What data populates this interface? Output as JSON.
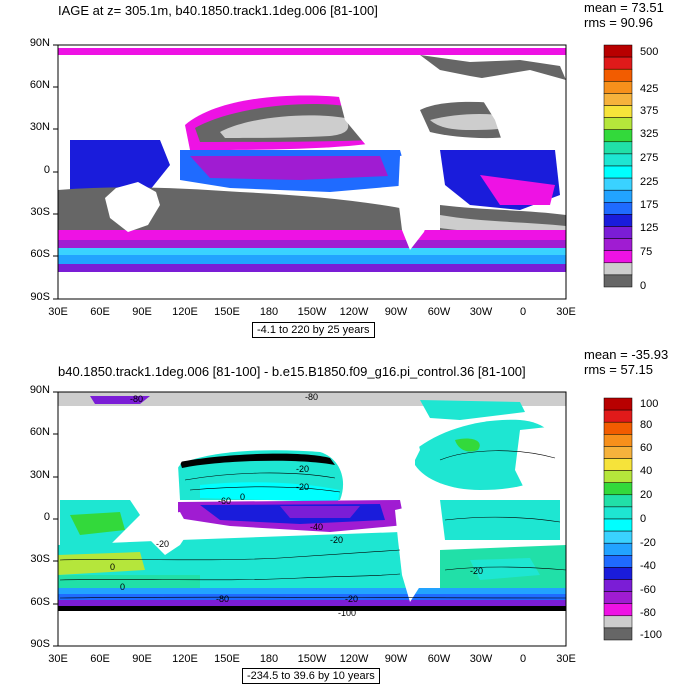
{
  "panels": [
    {
      "title": "IAGE at z= 305.1m, b40.1850.track1.1deg.006 [81-100]",
      "mean": "mean = 73.51",
      "rms": "rms = 90.96",
      "lat_labels": [
        "90N",
        "60N",
        "30N",
        "0",
        "30S",
        "60S",
        "90S"
      ],
      "lon_labels": [
        "30E",
        "60E",
        "90E",
        "120E",
        "150E",
        "180",
        "150W",
        "120W",
        "90W",
        "60W",
        "30W",
        "0",
        "30E"
      ],
      "range": "-4.1 to 220 by 25 years",
      "colorbar": {
        "labels": [
          "500",
          "425",
          "375",
          "325",
          "275",
          "225",
          "175",
          "125",
          "75",
          "0"
        ],
        "colors": [
          "#b80000",
          "#e01a1a",
          "#f25c00",
          "#f7901b",
          "#f6b23c",
          "#f6e33a",
          "#b5e63b",
          "#33d93b",
          "#21e0a8",
          "#1ee6d2",
          "#00ffff",
          "#3ad2ff",
          "#22a3ff",
          "#1f6bff",
          "#1a1cdb",
          "#7b1dd6",
          "#a01cd2",
          "#ee12e4",
          "#cdcdcd",
          "#666666"
        ]
      }
    },
    {
      "title": "b40.1850.track1.1deg.006 [81-100] - b.e15.B1850.f09_g16.pi_control.36 [81-100]",
      "mean": "mean = -35.93",
      "rms": "rms = 57.15",
      "lat_labels": [
        "90N",
        "60N",
        "30N",
        "0",
        "30S",
        "60S",
        "90S"
      ],
      "lon_labels": [
        "30E",
        "60E",
        "90E",
        "120E",
        "150E",
        "180",
        "150W",
        "120W",
        "90W",
        "60W",
        "30W",
        "0",
        "30E"
      ],
      "range": "-234.5 to 39.6 by 10 years",
      "contour_labels": [
        "-80",
        "-80",
        "-20",
        "-20",
        "-60",
        "0",
        "-40",
        "-20",
        "-100",
        "-20",
        "-20",
        "-80",
        "0",
        "-20",
        "0"
      ],
      "colorbar": {
        "labels": [
          "100",
          "80",
          "60",
          "40",
          "20",
          "0",
          "-20",
          "-40",
          "-60",
          "-80",
          "-100"
        ],
        "colors": [
          "#b80000",
          "#e01a1a",
          "#f25c00",
          "#f7901b",
          "#f6b23c",
          "#f6e33a",
          "#b5e63b",
          "#33d93b",
          "#21e0a8",
          "#1ee6d2",
          "#00ffff",
          "#3ad2ff",
          "#22a3ff",
          "#1f6bff",
          "#1a1cdb",
          "#7b1dd6",
          "#a01cd2",
          "#ee12e4",
          "#cdcdcd",
          "#666666"
        ]
      }
    }
  ]
}
